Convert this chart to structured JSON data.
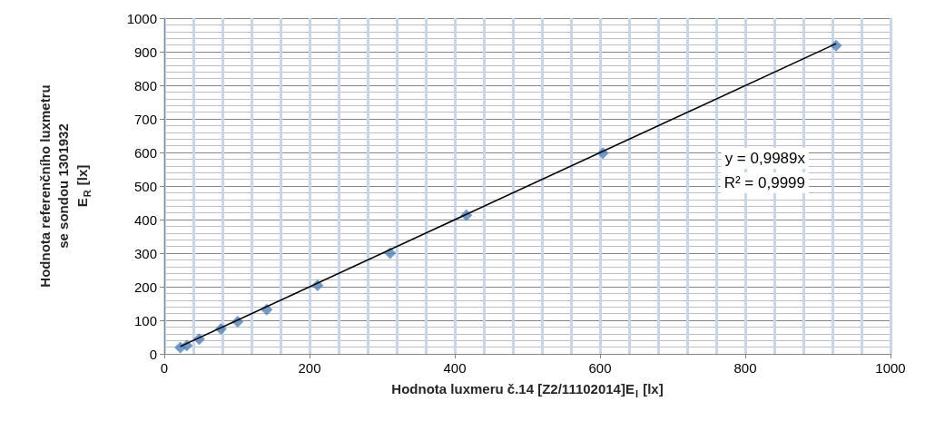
{
  "chart_data": {
    "type": "scatter",
    "xlabel": "Hodnota luxmeru č.14 [Z2/11102014]E$_{I}$ [lx]",
    "ylabel": "Hodnota referenčního luxmetru\nse sondou 1301932\nE$_{R}$ [lx]",
    "series": [
      {
        "color": "#4f81bd",
        "marker": "diamond",
        "x": [
          22,
          31,
          48,
          78,
          101,
          141,
          211,
          311,
          416,
          604,
          925
        ],
        "values": [
          19,
          25,
          44,
          74,
          96,
          132,
          204,
          300,
          413,
          598,
          918
        ]
      },
      {
        "type": "line",
        "color": "#000000",
        "marker": "none",
        "line_style": "solid",
        "x": [
          22,
          925
        ],
        "values": [
          22,
          924
        ]
      }
    ],
    "xlim": [
      0,
      1000
    ],
    "xticks": [
      0,
      200,
      400,
      600,
      800,
      1000
    ],
    "ylim": [
      0,
      1000
    ],
    "yticks": [
      0,
      100,
      200,
      300,
      400,
      500,
      600,
      700,
      800,
      900,
      1000
    ],
    "grid": true,
    "annotations": [
      "y = 0,9989x",
      "R² = 0,9999"
    ]
  }
}
